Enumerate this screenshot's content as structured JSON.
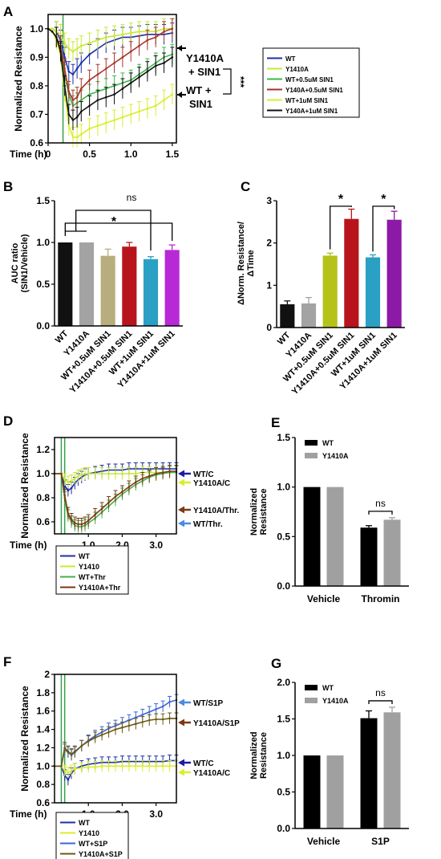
{
  "colors": {
    "wt": "#1f2fa8",
    "y1410a": "#c8e832",
    "wt_05": "#3bb84a",
    "y_05": "#a5362a",
    "wt_1": "#d9ee2a",
    "y_1": "#111111",
    "wt_thr": "#46b04a",
    "y_thr": "#7a3a14",
    "wt_s1p": "#3d66d6",
    "y_s1p": "#6b5a10",
    "vline": "#3aa04a",
    "bar_wt": "#000000",
    "bar_y": "#a0a0a0"
  },
  "chart_data": [
    {
      "panel": "A",
      "type": "line",
      "ylabel": "Normalized Resistance",
      "xlabel": "Time (h)",
      "xlim": [
        0,
        1.55
      ],
      "ylim": [
        0.6,
        1.05
      ],
      "xticks": [
        0,
        0.5,
        1.0,
        1.5
      ],
      "xticklabels": [
        "0",
        "0.5",
        "1.0",
        "1.5"
      ],
      "yticks": [
        0.6,
        0.7,
        0.8,
        0.9,
        1.0
      ],
      "yticklabels": [
        "0.6",
        "0.7",
        "0.8",
        "0.9",
        "1.0"
      ],
      "markers": [
        0.18
      ],
      "x": [
        0,
        0.05,
        0.1,
        0.15,
        0.2,
        0.25,
        0.3,
        0.35,
        0.4,
        0.5,
        0.6,
        0.7,
        0.8,
        0.9,
        1.0,
        1.1,
        1.2,
        1.3,
        1.4,
        1.5
      ],
      "series": [
        {
          "name": "WT",
          "color": "#1f2fa8",
          "values": [
            1.0,
            1.0,
            0.99,
            0.96,
            0.9,
            0.85,
            0.84,
            0.86,
            0.88,
            0.91,
            0.93,
            0.95,
            0.96,
            0.97,
            0.97,
            0.975,
            0.98,
            0.98,
            0.98,
            0.985
          ]
        },
        {
          "name": "Y1410A",
          "color": "#c8e832",
          "values": [
            1.0,
            1.0,
            0.99,
            0.98,
            0.95,
            0.93,
            0.92,
            0.93,
            0.94,
            0.95,
            0.96,
            0.97,
            0.975,
            0.98,
            0.985,
            0.99,
            0.99,
            0.99,
            1.0,
            1.0
          ]
        },
        {
          "name": "WT+0.5uM SIN1",
          "color": "#3bb84a",
          "values": [
            1.0,
            0.99,
            0.97,
            0.93,
            0.84,
            0.77,
            0.73,
            0.74,
            0.75,
            0.77,
            0.78,
            0.79,
            0.8,
            0.81,
            0.82,
            0.84,
            0.86,
            0.88,
            0.9,
            0.91
          ]
        },
        {
          "name": "Y140A+0.5uM SIN1",
          "color": "#a5362a",
          "values": [
            1.0,
            0.99,
            0.97,
            0.94,
            0.86,
            0.78,
            0.75,
            0.76,
            0.79,
            0.82,
            0.84,
            0.86,
            0.88,
            0.9,
            0.92,
            0.94,
            0.96,
            0.97,
            0.99,
            1.0
          ]
        },
        {
          "name": "WT+1uM SIN1",
          "color": "#d9ee2a",
          "values": [
            1.0,
            0.99,
            0.96,
            0.91,
            0.78,
            0.66,
            0.62,
            0.62,
            0.63,
            0.65,
            0.66,
            0.67,
            0.68,
            0.69,
            0.7,
            0.71,
            0.72,
            0.73,
            0.75,
            0.77
          ]
        },
        {
          "name": "Y140A+1uM SIN1",
          "color": "#111111",
          "values": [
            1.0,
            0.99,
            0.97,
            0.92,
            0.8,
            0.7,
            0.68,
            0.69,
            0.71,
            0.73,
            0.75,
            0.76,
            0.77,
            0.79,
            0.81,
            0.83,
            0.85,
            0.87,
            0.88,
            0.9
          ]
        }
      ],
      "legend": {
        "placement": "right",
        "items": [
          "WT",
          "Y1410A",
          "WT+0.5uM SIN1",
          "Y140A+0.5uM SIN1",
          "WT+1uM SIN1",
          "Y140A+1uM SIN1"
        ]
      },
      "annotations": [
        "Y1410A",
        "+ SIN1",
        "WT +",
        "SIN1",
        "***"
      ]
    },
    {
      "panel": "B",
      "type": "bar",
      "ylabel": "AUC ratio\n(SIN1/Vehicle)",
      "ylim": [
        0,
        1.5
      ],
      "yticks": [
        0.0,
        0.5,
        1.0,
        1.5
      ],
      "yticklabels": [
        "0.0",
        "0.5",
        "1.0",
        "1.5"
      ],
      "categories": [
        "WT",
        "Y1410A",
        "WT+0.5uM SIN1",
        "Y1410A+0.5uM SIN1",
        "WT+1uM SIN1",
        "Y1410A+1uM SIN1"
      ],
      "values": [
        1.0,
        1.0,
        0.84,
        0.95,
        0.8,
        0.91
      ],
      "errors": [
        0,
        0,
        0.08,
        0.05,
        0.03,
        0.06
      ],
      "bar_colors": [
        "#111111",
        "#a3a3a3",
        "#b8ad7c",
        "#b8141c",
        "#2aa0c4",
        "#b829d6"
      ],
      "significance": [
        "ns",
        "*"
      ]
    },
    {
      "panel": "C",
      "type": "bar",
      "ylabel": "ΔNorm. Resistance/\nΔTime",
      "ylim": [
        0,
        3
      ],
      "yticks": [
        0,
        1,
        2,
        3
      ],
      "yticklabels": [
        "0",
        "1",
        "2",
        "3"
      ],
      "categories": [
        "WT",
        "Y1410A",
        "WT+0.5uM SIN1",
        "Y1410A+0.5uM SIN1",
        "WT+1uM SIN1",
        "Y1410A+1uM SIN1"
      ],
      "values": [
        0.55,
        0.57,
        1.7,
        2.57,
        1.66,
        2.55
      ],
      "errors": [
        0.08,
        0.14,
        0.06,
        0.23,
        0.06,
        0.2
      ],
      "bar_colors": [
        "#111111",
        "#a3a3a3",
        "#b5c21a",
        "#b8141c",
        "#2aa0c4",
        "#8c1aa6"
      ],
      "significance": [
        "*",
        "*"
      ]
    },
    {
      "panel": "D",
      "type": "line",
      "ylabel": "Normalized Resistance",
      "xlabel": "Time (h)",
      "xlim": [
        0,
        3.6
      ],
      "ylim": [
        0.5,
        1.3
      ],
      "xticks": [
        1.0,
        2.0,
        3.0
      ],
      "xticklabels": [
        "1.0",
        "2.0",
        "3.0"
      ],
      "yticks": [
        0.6,
        0.8,
        1.0,
        1.2
      ],
      "yticklabels": [
        "0.6",
        "0.8",
        "1.0",
        "1.2"
      ],
      "markers": [
        0.2,
        0.3
      ],
      "x": [
        0,
        0.2,
        0.3,
        0.4,
        0.5,
        0.6,
        0.7,
        0.8,
        0.9,
        1.0,
        1.2,
        1.4,
        1.6,
        1.8,
        2.0,
        2.2,
        2.4,
        2.6,
        2.8,
        3.0,
        3.2,
        3.4,
        3.6
      ],
      "series": [
        {
          "name": "WT",
          "color": "#1f2fa8",
          "values": [
            1.0,
            1.0,
            0.9,
            0.86,
            0.88,
            0.92,
            0.95,
            0.97,
            0.99,
            1.0,
            1.01,
            1.02,
            1.03,
            1.03,
            1.03,
            1.04,
            1.04,
            1.04,
            1.04,
            1.04,
            1.04,
            1.04,
            1.04
          ]
        },
        {
          "name": "Y1410",
          "color": "#c8e832",
          "values": [
            1.0,
            1.0,
            0.95,
            0.93,
            0.94,
            0.96,
            0.98,
            0.99,
            1.0,
            1.0,
            1.0,
            1.0,
            1.0,
            1.0,
            1.0,
            1.0,
            1.0,
            1.01,
            1.01,
            1.01,
            1.01,
            1.01,
            1.01
          ]
        },
        {
          "name": "WT+Thr",
          "color": "#46b04a",
          "values": [
            1.0,
            1.0,
            0.8,
            0.65,
            0.6,
            0.57,
            0.56,
            0.56,
            0.57,
            0.59,
            0.63,
            0.68,
            0.73,
            0.78,
            0.83,
            0.87,
            0.91,
            0.94,
            0.97,
            0.99,
            1.0,
            1.01,
            1.01
          ]
        },
        {
          "name": "Y1410A+Thr",
          "color": "#7a3a14",
          "values": [
            1.0,
            1.0,
            0.82,
            0.67,
            0.62,
            0.59,
            0.58,
            0.58,
            0.59,
            0.61,
            0.66,
            0.71,
            0.76,
            0.81,
            0.85,
            0.89,
            0.93,
            0.96,
            0.98,
            1.0,
            1.01,
            1.02,
            1.02
          ]
        }
      ],
      "legend": {
        "placement": "bottom",
        "items": [
          "WT",
          "Y1410",
          "WT+Thr",
          "Y1410A+Thr"
        ]
      },
      "annotations": [
        "WT/C",
        "Y1410A/C",
        "Y1410A/Thr.",
        "WT/Thr."
      ]
    },
    {
      "panel": "E",
      "type": "bar",
      "ylabel": "Normalized\nResistance",
      "ylim": [
        0,
        1.5
      ],
      "yticks": [
        0.0,
        0.5,
        1.0,
        1.5
      ],
      "yticklabels": [
        "0.0",
        "0.5",
        "1.0",
        "1.5"
      ],
      "categories": [
        "Vehicle",
        "Thromin"
      ],
      "series": [
        {
          "name": "WT",
          "color": "#000000",
          "values": [
            1.0,
            0.59
          ],
          "errors": [
            0,
            0.02
          ]
        },
        {
          "name": "Y1410A",
          "color": "#a0a0a0",
          "values": [
            1.0,
            0.67
          ],
          "errors": [
            0,
            0.02
          ]
        }
      ],
      "legend": {
        "placement": "top-left",
        "items": [
          "WT",
          "Y1410A"
        ]
      },
      "significance": [
        "ns"
      ]
    },
    {
      "panel": "F",
      "type": "line",
      "ylabel": "Normalized Resistance",
      "xlabel": "Time (h)",
      "xlim": [
        0,
        3.6
      ],
      "ylim": [
        0.6,
        2.0
      ],
      "xticks": [
        1.0,
        2.0,
        3.0
      ],
      "xticklabels": [
        "1.0",
        "2.0",
        "3.0"
      ],
      "yticks": [
        0.6,
        0.8,
        1.0,
        1.2,
        1.4,
        1.6,
        1.8,
        2.0
      ],
      "yticklabels": [
        "0.6",
        "0.8",
        "1.0",
        "1.2",
        "1.4",
        "1.6",
        "1.8",
        "2"
      ],
      "markers": [
        0.2,
        0.3
      ],
      "x": [
        0,
        0.2,
        0.3,
        0.4,
        0.5,
        0.6,
        0.8,
        1.0,
        1.2,
        1.4,
        1.6,
        1.8,
        2.0,
        2.2,
        2.4,
        2.6,
        2.8,
        3.0,
        3.2,
        3.4,
        3.6
      ],
      "series": [
        {
          "name": "WT",
          "color": "#1f2fa8",
          "values": [
            1.0,
            1.0,
            0.9,
            0.85,
            0.92,
            0.97,
            1.0,
            1.02,
            1.03,
            1.04,
            1.04,
            1.04,
            1.05,
            1.05,
            1.05,
            1.05,
            1.05,
            1.05,
            1.05,
            1.06,
            1.06
          ]
        },
        {
          "name": "Y1410",
          "color": "#d9ee2a",
          "values": [
            1.0,
            1.0,
            0.95,
            0.93,
            0.95,
            0.97,
            0.98,
            0.99,
            0.99,
            1.0,
            1.0,
            1.0,
            1.0,
            1.0,
            1.0,
            1.0,
            1.0,
            1.0,
            1.0,
            1.0,
            1.0
          ]
        },
        {
          "name": "WT+S1P",
          "color": "#3d66d6",
          "values": [
            1.0,
            1.0,
            1.18,
            1.15,
            1.12,
            1.15,
            1.22,
            1.28,
            1.33,
            1.37,
            1.41,
            1.44,
            1.47,
            1.5,
            1.53,
            1.56,
            1.59,
            1.62,
            1.65,
            1.7,
            1.72
          ]
        },
        {
          "name": "Y1410A+S1P",
          "color": "#6b5a10",
          "values": [
            1.0,
            1.0,
            1.2,
            1.16,
            1.13,
            1.16,
            1.22,
            1.27,
            1.31,
            1.34,
            1.37,
            1.4,
            1.42,
            1.44,
            1.46,
            1.48,
            1.5,
            1.51,
            1.51,
            1.52,
            1.52
          ]
        }
      ],
      "legend": {
        "placement": "bottom",
        "items": [
          "WT",
          "Y1410",
          "WT+S1P",
          "Y1410A+S1P"
        ]
      },
      "annotations": [
        "WT/S1P",
        "Y1410A/S1P",
        "WT/C",
        "Y1410A/C"
      ]
    },
    {
      "panel": "G",
      "type": "bar",
      "ylabel": "Normalized\nResistance",
      "ylim": [
        0,
        2.0
      ],
      "yticks": [
        0.0,
        0.5,
        1.0,
        1.5,
        2.0
      ],
      "yticklabels": [
        "0.0",
        "0.5",
        "1.0",
        "1.5",
        "2.0"
      ],
      "categories": [
        "Vehicle",
        "S1P"
      ],
      "series": [
        {
          "name": "WT",
          "color": "#000000",
          "values": [
            1.0,
            1.51
          ],
          "errors": [
            0,
            0.1
          ]
        },
        {
          "name": "Y1410A",
          "color": "#a0a0a0",
          "values": [
            1.0,
            1.59
          ],
          "errors": [
            0,
            0.07
          ]
        }
      ],
      "legend": {
        "placement": "top-left",
        "items": [
          "WT",
          "Y1410A"
        ]
      },
      "significance": [
        "ns"
      ]
    }
  ]
}
